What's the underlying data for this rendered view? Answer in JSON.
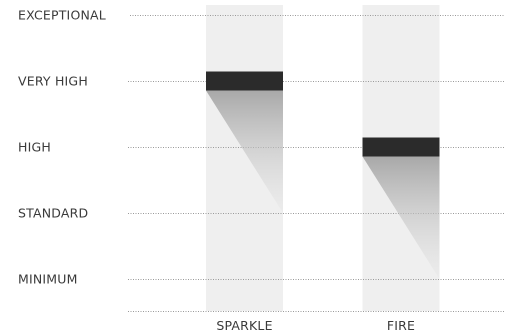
{
  "chart_data": {
    "type": "bar",
    "levels": [
      "MINIMUM",
      "STANDARD",
      "HIGH",
      "VERY HIGH",
      "EXCEPTIONAL"
    ],
    "categories": [
      "SPARKLE",
      "FIRE"
    ],
    "values": [
      "VERY HIGH",
      "HIGH"
    ],
    "grid": true,
    "colors": {
      "column_track": "#efefef",
      "marker": "#2b2b2b",
      "shadow": "#a8a8a8",
      "grid": "#9a9a9a",
      "text": "#3a3a3a"
    }
  }
}
